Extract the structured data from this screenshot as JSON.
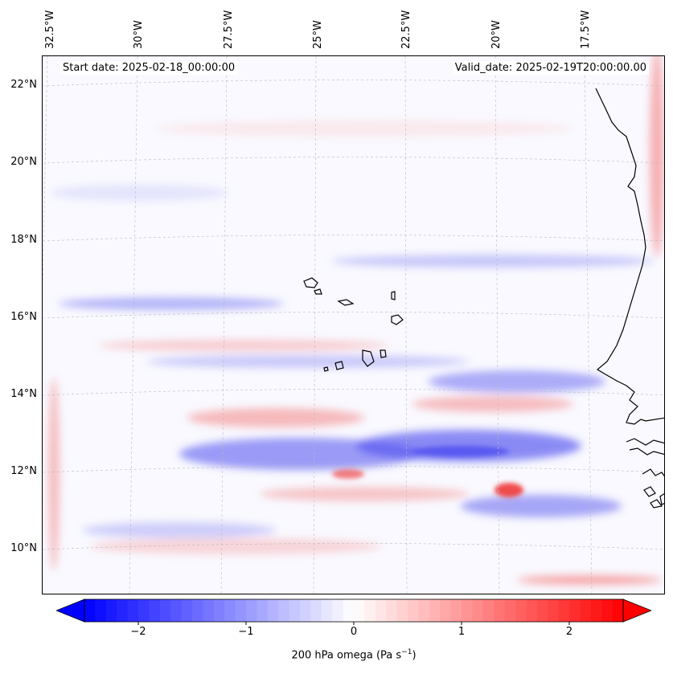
{
  "map": {
    "title_left_prefix": "Start date: ",
    "start_date": "2025-02-18_00:00:00",
    "valid_prefix": "Valid_date: ",
    "valid_date": "2025-02-19T20:00:00.00",
    "lat_labels": [
      "22°N",
      "20°N",
      "18°N",
      "16°N",
      "14°N",
      "12°N",
      "10°N"
    ],
    "lon_labels": [
      "32.5°W",
      "30°W",
      "27.5°W",
      "25°W",
      "22.5°W",
      "20°W",
      "17.5°W"
    ],
    "lat_values": [
      22,
      20,
      18,
      16,
      14,
      12,
      10
    ],
    "lon_values": [
      -32.5,
      -30,
      -27.5,
      -25,
      -22.5,
      -20,
      -17.5
    ],
    "extent": {
      "lon_min": -33.0,
      "lon_max": -15.8,
      "lat_min": 8.9,
      "lat_max": 22.8
    },
    "coastline_color": "#000000",
    "gridline_color": "#bbbbbb"
  },
  "colorbar": {
    "label": "200 hPa omega (Pa s",
    "label_sup": "−1",
    "label_close": ")",
    "ticks": [
      "−2",
      "−1",
      "0",
      "1",
      "2"
    ],
    "tick_values": [
      -2,
      -1,
      0,
      1,
      2
    ],
    "range": [
      -2.5,
      2.5
    ],
    "extend": "both",
    "colormap": "bwr",
    "low_color": "#0000ff",
    "mid_color": "#ffffff",
    "high_color": "#ff0000"
  },
  "chart_data": {
    "type": "heatmap",
    "variable": "200 hPa omega",
    "units": "Pa s−1",
    "region": "Eastern tropical Atlantic / Cape Verde / West African coast",
    "features": [
      {
        "name": "negative-band-central",
        "sign": "negative",
        "approx_lat": 12.3,
        "lon_from": -28,
        "lon_to": -18,
        "peak": -1.2
      },
      {
        "name": "positive-band-north",
        "sign": "positive",
        "approx_lat": 13.3,
        "lon_from": -27,
        "lon_to": -18,
        "peak": 0.8
      },
      {
        "name": "positive-cell-south",
        "sign": "positive",
        "approx_lat": 11.6,
        "lon_from": -20.5,
        "lon_to": -19.8,
        "peak": 1.6
      },
      {
        "name": "negative-band-16N",
        "sign": "negative",
        "approx_lat": 16.4,
        "lon_from": -32,
        "lon_to": -25,
        "peak": -0.6
      },
      {
        "name": "positive-strip-west",
        "sign": "positive",
        "approx_lat": 11.5,
        "lon_from": -33,
        "lon_to": -32.7,
        "peak": 0.6
      },
      {
        "name": "positive-strip-east",
        "sign": "positive",
        "approx_lat": 20.5,
        "lon_from": -16.2,
        "lon_to": -15.8,
        "peak": 0.7
      },
      {
        "name": "positive-band-south",
        "sign": "positive",
        "approx_lat": 9.3,
        "lon_from": -20.5,
        "lon_to": -17,
        "peak": 0.7
      }
    ]
  }
}
